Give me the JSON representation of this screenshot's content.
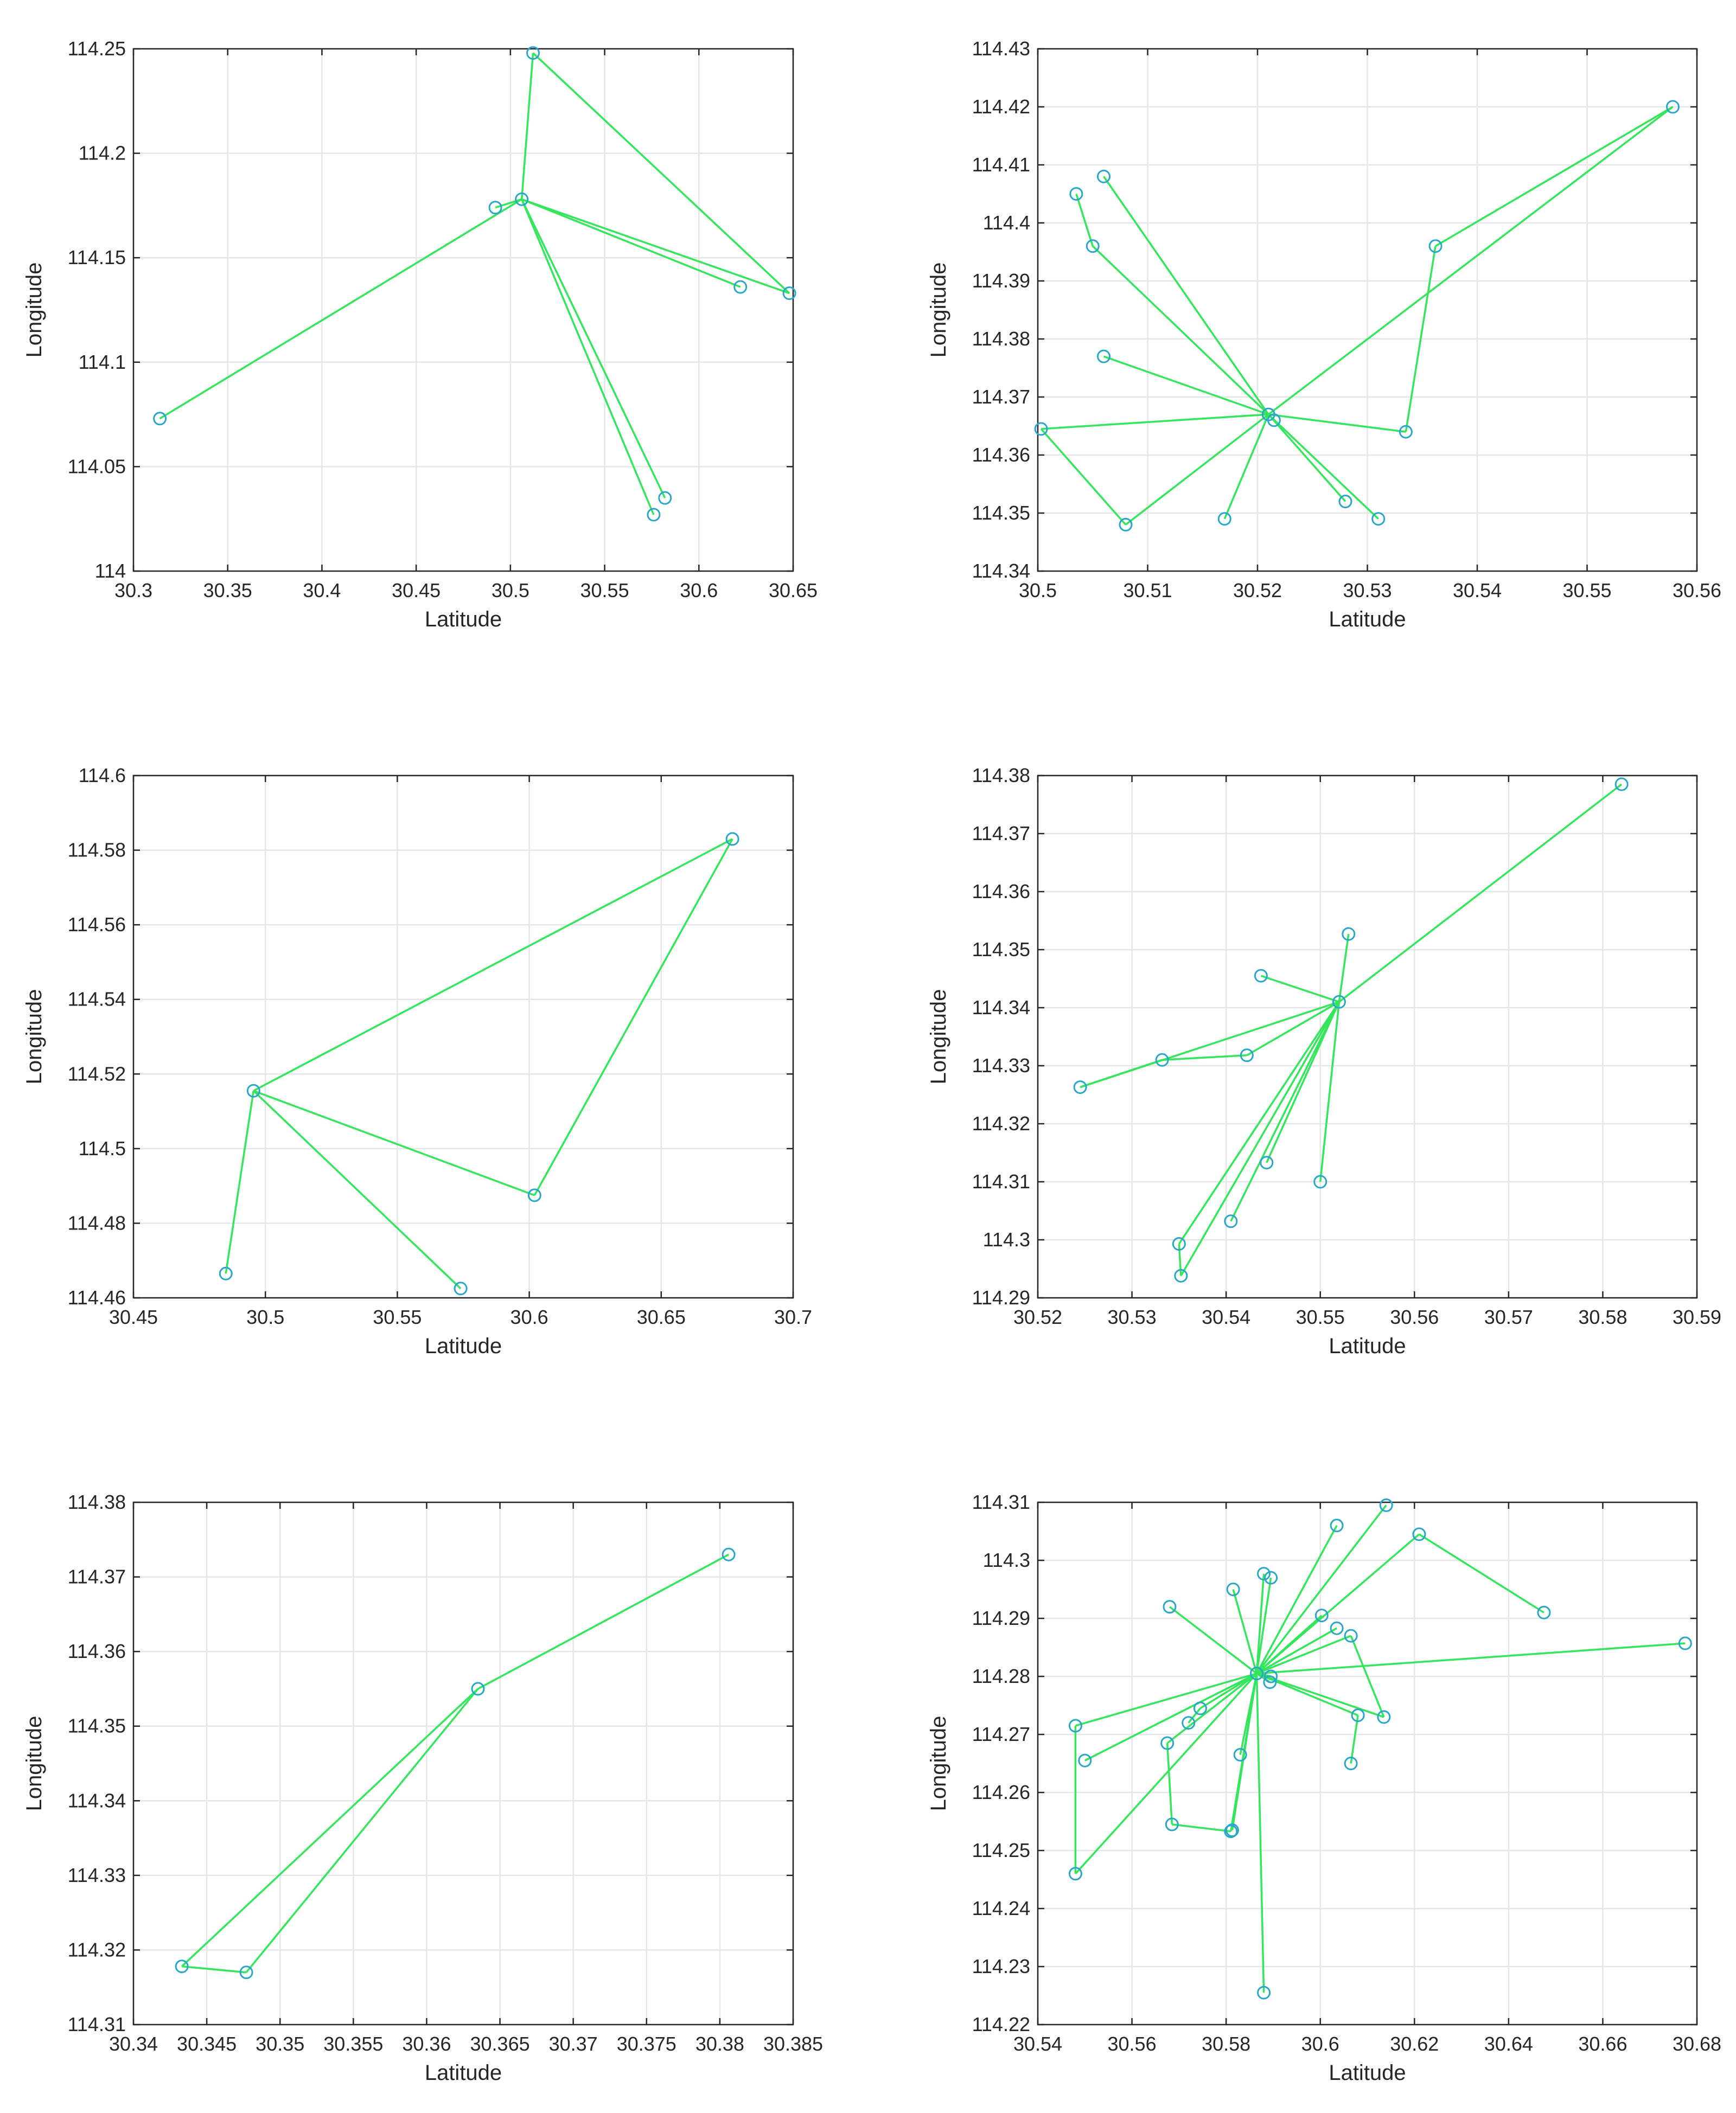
{
  "colors": {
    "line": "#33e65c",
    "marker": "#2aa7c8",
    "grid": "#e6e6e6",
    "axis": "#262626"
  },
  "chart_data": [
    {
      "type": "line",
      "xlabel": "Latitude",
      "ylabel": "Longitude",
      "xlim": [
        30.3,
        30.65
      ],
      "ylim": [
        114,
        114.25
      ],
      "x_ticks": [
        30.3,
        30.35,
        30.4,
        30.45,
        30.5,
        30.55,
        30.6,
        30.65
      ],
      "x_tick_labels": [
        "30.3",
        "30.35",
        "30.4",
        "30.45",
        "30.5",
        "30.55",
        "30.6",
        "30.65"
      ],
      "y_ticks": [
        114,
        114.05,
        114.1,
        114.15,
        114.2,
        114.25
      ],
      "y_tick_labels": [
        "114",
        "114.05",
        "114.1",
        "114.15",
        "114.2",
        "114.25"
      ],
      "grid": true,
      "points": [
        [
          30.314,
          114.073
        ],
        [
          30.492,
          114.174
        ],
        [
          30.506,
          114.178
        ],
        [
          30.512,
          114.248
        ],
        [
          30.576,
          114.027
        ],
        [
          30.582,
          114.035
        ],
        [
          30.622,
          114.136
        ],
        [
          30.648,
          114.133
        ]
      ],
      "segments": [
        [
          0,
          2
        ],
        [
          2,
          3
        ],
        [
          3,
          7
        ],
        [
          2,
          7
        ],
        [
          2,
          4
        ],
        [
          2,
          5
        ],
        [
          1,
          2
        ],
        [
          2,
          6
        ]
      ]
    },
    {
      "type": "line",
      "xlabel": "Latitude",
      "ylabel": "Longitude",
      "xlim": [
        30.5,
        30.56
      ],
      "ylim": [
        114.34,
        114.43
      ],
      "x_ticks": [
        30.5,
        30.51,
        30.52,
        30.53,
        30.54,
        30.55,
        30.56
      ],
      "x_tick_labels": [
        "30.5",
        "30.51",
        "30.52",
        "30.53",
        "30.54",
        "30.55",
        "30.56"
      ],
      "y_ticks": [
        114.34,
        114.35,
        114.36,
        114.37,
        114.38,
        114.39,
        114.4,
        114.41,
        114.42,
        114.43
      ],
      "y_tick_labels": [
        "114.34",
        "114.35",
        "114.36",
        "114.37",
        "114.38",
        "114.39",
        "114.4",
        "114.41",
        "114.42",
        "114.43"
      ],
      "grid": true,
      "points": [
        [
          30.521,
          114.367
        ],
        [
          30.5215,
          114.366
        ],
        [
          30.5035,
          114.405
        ],
        [
          30.506,
          114.408
        ],
        [
          30.505,
          114.396
        ],
        [
          30.506,
          114.377
        ],
        [
          30.5003,
          114.3645
        ],
        [
          30.508,
          114.348
        ],
        [
          30.517,
          114.349
        ],
        [
          30.528,
          114.352
        ],
        [
          30.531,
          114.349
        ],
        [
          30.5335,
          114.364
        ],
        [
          30.5362,
          114.396
        ],
        [
          30.5578,
          114.42
        ]
      ],
      "segments": [
        [
          0,
          3
        ],
        [
          0,
          4
        ],
        [
          2,
          4
        ],
        [
          0,
          5
        ],
        [
          0,
          6
        ],
        [
          6,
          7
        ],
        [
          0,
          7
        ],
        [
          0,
          8
        ],
        [
          0,
          9
        ],
        [
          0,
          10
        ],
        [
          0,
          11
        ],
        [
          11,
          12
        ],
        [
          0,
          13
        ],
        [
          12,
          13
        ]
      ]
    },
    {
      "type": "line",
      "xlabel": "Latitude",
      "ylabel": "Longitude",
      "xlim": [
        30.45,
        30.7
      ],
      "ylim": [
        114.46,
        114.6
      ],
      "x_ticks": [
        30.45,
        30.5,
        30.55,
        30.6,
        30.65,
        30.7
      ],
      "x_tick_labels": [
        "30.45",
        "30.5",
        "30.55",
        "30.6",
        "30.65",
        "30.7"
      ],
      "y_ticks": [
        114.46,
        114.48,
        114.5,
        114.52,
        114.54,
        114.56,
        114.58,
        114.6
      ],
      "y_tick_labels": [
        "114.46",
        "114.48",
        "114.5",
        "114.52",
        "114.54",
        "114.56",
        "114.58",
        "114.6"
      ],
      "grid": true,
      "points": [
        [
          30.4955,
          114.5155
        ],
        [
          30.677,
          114.583
        ],
        [
          30.602,
          114.4875
        ],
        [
          30.485,
          114.4665
        ],
        [
          30.574,
          114.4625
        ]
      ],
      "segments": [
        [
          0,
          1
        ],
        [
          1,
          2
        ],
        [
          0,
          2
        ],
        [
          0,
          3
        ],
        [
          0,
          4
        ]
      ]
    },
    {
      "type": "line",
      "xlabel": "Latitude",
      "ylabel": "Longitude",
      "xlim": [
        30.52,
        30.59
      ],
      "ylim": [
        114.29,
        114.38
      ],
      "x_ticks": [
        30.52,
        30.53,
        30.54,
        30.55,
        30.56,
        30.57,
        30.58,
        30.59
      ],
      "x_tick_labels": [
        "30.52",
        "30.53",
        "30.54",
        "30.55",
        "30.56",
        "30.57",
        "30.58",
        "30.59"
      ],
      "y_ticks": [
        114.29,
        114.3,
        114.31,
        114.32,
        114.33,
        114.34,
        114.35,
        114.36,
        114.37,
        114.38
      ],
      "y_tick_labels": [
        "114.29",
        "114.3",
        "114.31",
        "114.32",
        "114.33",
        "114.34",
        "114.35",
        "114.36",
        "114.37",
        "114.38"
      ],
      "grid": true,
      "points": [
        [
          30.552,
          114.341
        ],
        [
          30.582,
          114.3785
        ],
        [
          30.553,
          114.3527
        ],
        [
          30.5437,
          114.3455
        ],
        [
          30.5422,
          114.3318
        ],
        [
          30.5332,
          114.331
        ],
        [
          30.5245,
          114.3263
        ],
        [
          30.5443,
          114.3133
        ],
        [
          30.55,
          114.31
        ],
        [
          30.5405,
          114.3032
        ],
        [
          30.535,
          114.2993
        ],
        [
          30.5352,
          114.2938
        ]
      ],
      "segments": [
        [
          0,
          1
        ],
        [
          0,
          2
        ],
        [
          0,
          3
        ],
        [
          0,
          4
        ],
        [
          4,
          5
        ],
        [
          5,
          6
        ],
        [
          0,
          6
        ],
        [
          0,
          7
        ],
        [
          0,
          8
        ],
        [
          0,
          9
        ],
        [
          0,
          10
        ],
        [
          10,
          11
        ],
        [
          0,
          11
        ]
      ]
    },
    {
      "type": "line",
      "xlabel": "Latitude",
      "ylabel": "Longitude",
      "xlim": [
        30.34,
        30.385
      ],
      "ylim": [
        114.31,
        114.38
      ],
      "x_ticks": [
        30.34,
        30.345,
        30.35,
        30.355,
        30.36,
        30.365,
        30.37,
        30.375,
        30.38,
        30.385
      ],
      "x_tick_labels": [
        "30.34",
        "30.345",
        "30.35",
        "30.355",
        "30.36",
        "30.365",
        "30.37",
        "30.375",
        "30.38",
        "30.385"
      ],
      "y_ticks": [
        114.31,
        114.32,
        114.33,
        114.34,
        114.35,
        114.36,
        114.37,
        114.38
      ],
      "y_tick_labels": [
        "114.31",
        "114.32",
        "114.33",
        "114.34",
        "114.35",
        "114.36",
        "114.37",
        "114.38"
      ],
      "grid": true,
      "points": [
        [
          30.3806,
          114.373
        ],
        [
          30.3635,
          114.355
        ],
        [
          30.3433,
          114.3178
        ],
        [
          30.3477,
          114.317
        ]
      ],
      "segments": [
        [
          0,
          1
        ],
        [
          1,
          2
        ],
        [
          2,
          3
        ],
        [
          3,
          1
        ]
      ]
    },
    {
      "type": "line",
      "xlabel": "Latitude",
      "ylabel": "Longitude",
      "xlim": [
        30.54,
        30.68
      ],
      "ylim": [
        114.22,
        114.31
      ],
      "x_ticks": [
        30.54,
        30.56,
        30.58,
        30.6,
        30.62,
        30.64,
        30.66,
        30.68
      ],
      "x_tick_labels": [
        "30.54",
        "30.56",
        "30.58",
        "30.6",
        "30.62",
        "30.64",
        "30.66",
        "30.68"
      ],
      "y_ticks": [
        114.22,
        114.23,
        114.24,
        114.25,
        114.26,
        114.27,
        114.28,
        114.29,
        114.3,
        114.31
      ],
      "y_tick_labels": [
        "114.22",
        "114.23",
        "114.24",
        "114.25",
        "114.26",
        "114.27",
        "114.28",
        "114.29",
        "114.3",
        "114.31"
      ],
      "grid": true,
      "points": [
        [
          30.5865,
          114.2805
        ],
        [
          30.614,
          114.3095
        ],
        [
          30.6035,
          114.306
        ],
        [
          30.621,
          114.3045
        ],
        [
          30.588,
          114.2977
        ],
        [
          30.5895,
          114.297
        ],
        [
          30.5815,
          114.295
        ],
        [
          30.568,
          114.292
        ],
        [
          30.6475,
          114.291
        ],
        [
          30.6003,
          114.2905
        ],
        [
          30.6035,
          114.2883
        ],
        [
          30.6065,
          114.287
        ],
        [
          30.6775,
          114.2857
        ],
        [
          30.5895,
          114.28
        ],
        [
          30.5893,
          114.279
        ],
        [
          30.608,
          114.2733
        ],
        [
          30.6135,
          114.273
        ],
        [
          30.5745,
          114.2745
        ],
        [
          30.572,
          114.272
        ],
        [
          30.548,
          114.2715
        ],
        [
          30.5675,
          114.2685
        ],
        [
          30.583,
          114.2665
        ],
        [
          30.55,
          114.2655
        ],
        [
          30.6065,
          114.265
        ],
        [
          30.5685,
          114.2545
        ],
        [
          30.581,
          114.2533
        ],
        [
          30.5813,
          114.2535
        ],
        [
          30.548,
          114.246
        ],
        [
          30.588,
          114.2255
        ]
      ],
      "segments": [
        [
          0,
          1
        ],
        [
          0,
          2
        ],
        [
          0,
          3
        ],
        [
          3,
          8
        ],
        [
          0,
          4
        ],
        [
          0,
          5
        ],
        [
          0,
          6
        ],
        [
          0,
          7
        ],
        [
          0,
          9
        ],
        [
          0,
          10
        ],
        [
          0,
          11
        ],
        [
          11,
          16
        ],
        [
          0,
          12
        ],
        [
          0,
          13
        ],
        [
          0,
          14
        ],
        [
          0,
          15
        ],
        [
          15,
          23
        ],
        [
          0,
          17
        ],
        [
          17,
          18
        ],
        [
          0,
          19
        ],
        [
          19,
          27
        ],
        [
          0,
          20
        ],
        [
          20,
          24
        ],
        [
          24,
          25
        ],
        [
          0,
          21
        ],
        [
          0,
          22
        ],
        [
          0,
          25
        ],
        [
          0,
          26
        ],
        [
          0,
          27
        ],
        [
          0,
          28
        ],
        [
          0,
          16
        ]
      ]
    }
  ]
}
